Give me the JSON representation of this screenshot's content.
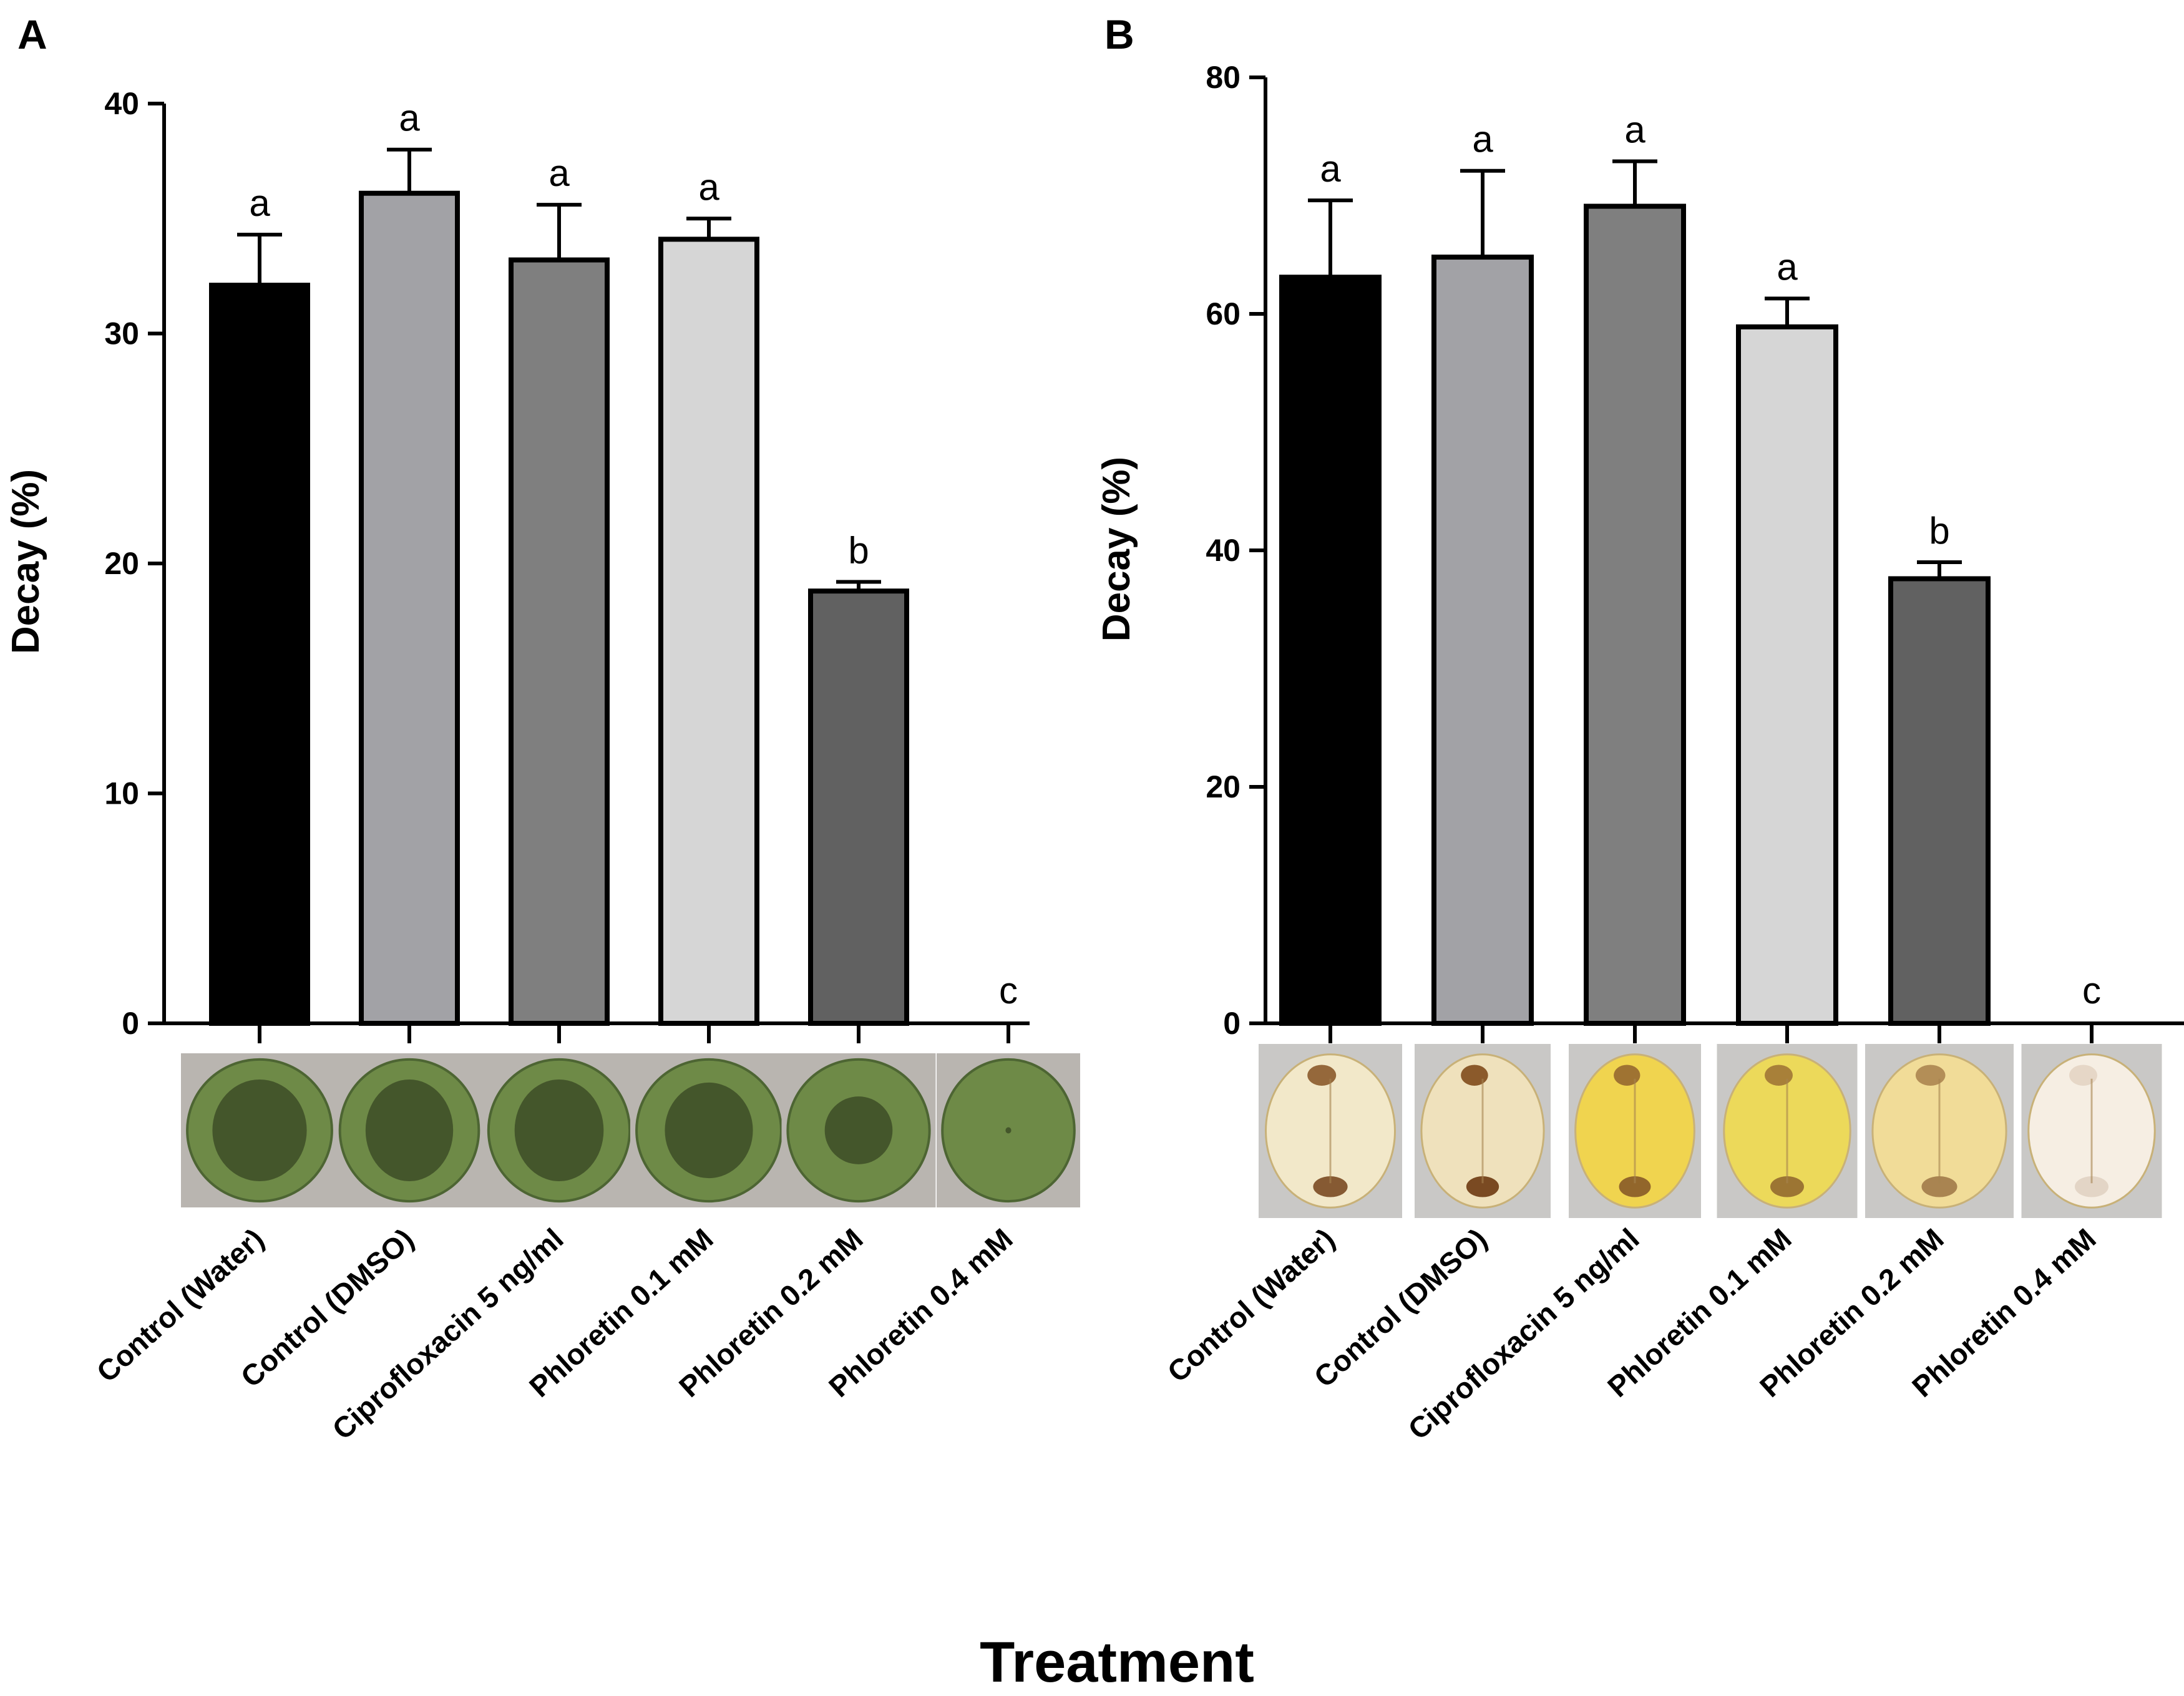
{
  "xlabel": "Treatment",
  "chart_data": [
    {
      "panel": "A",
      "type": "bar",
      "ylabel": "Decay (%)",
      "ylim": [
        0,
        40
      ],
      "yticks": [
        0,
        10,
        20,
        30,
        40
      ],
      "categories": [
        "Control (Water)",
        "Control (DMSO)",
        "Ciprofloxacin 5 ng/ml",
        "Phloretin 0.1 mM",
        "Phloretin 0.2 mM",
        "Phloretin 0.4 mM"
      ],
      "values": [
        32.1,
        36.1,
        33.2,
        34.1,
        18.8,
        0
      ],
      "errors": [
        2.2,
        1.9,
        2.4,
        0.9,
        0.4,
        0
      ],
      "significance": [
        "a",
        "a",
        "a",
        "a",
        "b",
        "c"
      ],
      "colors": [
        "#000000",
        "#a2a2a6",
        "#7f7f7f",
        "#d6d6d6",
        "#616161",
        "#ffffff"
      ],
      "thumbnail_style": "leaf-disc"
    },
    {
      "panel": "B",
      "type": "bar",
      "ylabel": "Decay (%)",
      "ylim": [
        0,
        80
      ],
      "yticks": [
        0,
        20,
        40,
        60,
        80
      ],
      "categories": [
        "Control (Water)",
        "Control (DMSO)",
        "Ciprofloxacin 5 ng/ml",
        "Phloretin 0.1 mM",
        "Phloretin 0.2 mM",
        "Phloretin 0.4 mM"
      ],
      "values": [
        63.1,
        64.8,
        69.1,
        58.9,
        37.6,
        0
      ],
      "errors": [
        6.5,
        7.3,
        3.8,
        2.4,
        1.4,
        0
      ],
      "significance": [
        "a",
        "a",
        "a",
        "a",
        "b",
        "c"
      ],
      "colors": [
        "#000000",
        "#a2a2a6",
        "#7f7f7f",
        "#d6d6d6",
        "#616161",
        "#ffffff"
      ],
      "thumbnail_style": "fruit-half"
    }
  ]
}
